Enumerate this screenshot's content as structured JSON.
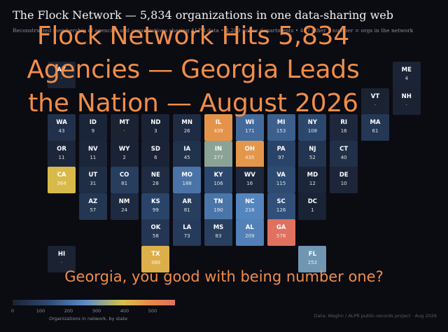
{
  "title": "The Flock Network — 5,834 organizations in one data-sharing web",
  "subtitle": "Reconstructed membership of agencies and organizations sharing ALPR data • 3,289 police departments • 407 other • number = orgs in the network",
  "overlay": {
    "headline_lines": [
      "Flock Network Hits 5,834",
      "Agencies — Georgia Leads",
      "the Nation — August 2026"
    ],
    "caption": "Georgia, you good with being number one?"
  },
  "legend": {
    "ticks": [
      "0",
      "100",
      "200",
      "300",
      "400",
      "500"
    ],
    "tick_values": [
      0,
      100,
      200,
      300,
      400,
      500
    ],
    "max": 580,
    "label": "Organizations in network, by state"
  },
  "credit": "Data: Waghn / ALPR public-records project · Aug 2026",
  "colors": {
    "empty": "#1b2232",
    "scale": [
      "#1a2234",
      "#2d4a72",
      "#5b8dc8",
      "#d6c24a",
      "#e8874a",
      "#e07060"
    ]
  },
  "chart_data": {
    "type": "heatmap",
    "description": "tile grid map",
    "legend_placement": "bottom-left",
    "states": [
      {
        "abbr": "AK",
        "value": null,
        "row": 1,
        "col": 1
      },
      {
        "abbr": "ME",
        "value": 4,
        "row": 1,
        "col": 12
      },
      {
        "abbr": "VT",
        "value": null,
        "row": 2,
        "col": 11
      },
      {
        "abbr": "NH",
        "value": null,
        "row": 2,
        "col": 12
      },
      {
        "abbr": "WA",
        "value": 43,
        "row": 3,
        "col": 1
      },
      {
        "abbr": "ID",
        "value": 9,
        "row": 3,
        "col": 2
      },
      {
        "abbr": "MT",
        "value": null,
        "row": 3,
        "col": 3
      },
      {
        "abbr": "ND",
        "value": 3,
        "row": 3,
        "col": 4
      },
      {
        "abbr": "MN",
        "value": 26,
        "row": 3,
        "col": 5
      },
      {
        "abbr": "IL",
        "value": 439,
        "row": 3,
        "col": 6
      },
      {
        "abbr": "WI",
        "value": 171,
        "row": 3,
        "col": 7
      },
      {
        "abbr": "MI",
        "value": 153,
        "row": 3,
        "col": 8
      },
      {
        "abbr": "NY",
        "value": 108,
        "row": 3,
        "col": 9
      },
      {
        "abbr": "RI",
        "value": 16,
        "row": 3,
        "col": 10
      },
      {
        "abbr": "MA",
        "value": 61,
        "row": 3,
        "col": 11
      },
      {
        "abbr": "OR",
        "value": 11,
        "row": 4,
        "col": 1
      },
      {
        "abbr": "NV",
        "value": 11,
        "row": 4,
        "col": 2
      },
      {
        "abbr": "WY",
        "value": 2,
        "row": 4,
        "col": 3
      },
      {
        "abbr": "SD",
        "value": 6,
        "row": 4,
        "col": 4
      },
      {
        "abbr": "IA",
        "value": 45,
        "row": 4,
        "col": 5
      },
      {
        "abbr": "IN",
        "value": 277,
        "row": 4,
        "col": 6
      },
      {
        "abbr": "OH",
        "value": 435,
        "row": 4,
        "col": 7
      },
      {
        "abbr": "PA",
        "value": 97,
        "row": 4,
        "col": 8
      },
      {
        "abbr": "NJ",
        "value": 52,
        "row": 4,
        "col": 9
      },
      {
        "abbr": "CT",
        "value": 40,
        "row": 4,
        "col": 10
      },
      {
        "abbr": "CA",
        "value": 364,
        "row": 5,
        "col": 1
      },
      {
        "abbr": "UT",
        "value": 31,
        "row": 5,
        "col": 2
      },
      {
        "abbr": "CO",
        "value": 81,
        "row": 5,
        "col": 3
      },
      {
        "abbr": "NE",
        "value": 28,
        "row": 5,
        "col": 4
      },
      {
        "abbr": "MO",
        "value": 188,
        "row": 5,
        "col": 5
      },
      {
        "abbr": "KY",
        "value": 106,
        "row": 5,
        "col": 6
      },
      {
        "abbr": "WV",
        "value": 16,
        "row": 5,
        "col": 7
      },
      {
        "abbr": "VA",
        "value": 115,
        "row": 5,
        "col": 8
      },
      {
        "abbr": "MD",
        "value": 12,
        "row": 5,
        "col": 9
      },
      {
        "abbr": "DE",
        "value": 10,
        "row": 5,
        "col": 10
      },
      {
        "abbr": "AZ",
        "value": 57,
        "row": 6,
        "col": 2
      },
      {
        "abbr": "NM",
        "value": 24,
        "row": 6,
        "col": 3
      },
      {
        "abbr": "KS",
        "value": 99,
        "row": 6,
        "col": 4
      },
      {
        "abbr": "AR",
        "value": 81,
        "row": 6,
        "col": 5
      },
      {
        "abbr": "TN",
        "value": 190,
        "row": 6,
        "col": 6
      },
      {
        "abbr": "NC",
        "value": 218,
        "row": 6,
        "col": 7
      },
      {
        "abbr": "SC",
        "value": 126,
        "row": 6,
        "col": 8
      },
      {
        "abbr": "DC",
        "value": 1,
        "row": 6,
        "col": 9
      },
      {
        "abbr": "OK",
        "value": 58,
        "row": 7,
        "col": 4
      },
      {
        "abbr": "LA",
        "value": 73,
        "row": 7,
        "col": 5
      },
      {
        "abbr": "MS",
        "value": 83,
        "row": 7,
        "col": 6
      },
      {
        "abbr": "AL",
        "value": 209,
        "row": 7,
        "col": 7
      },
      {
        "abbr": "GA",
        "value": 576,
        "row": 7,
        "col": 8
      },
      {
        "abbr": "HI",
        "value": null,
        "row": 8,
        "col": 1
      },
      {
        "abbr": "TX",
        "value": 386,
        "row": 8,
        "col": 4
      },
      {
        "abbr": "FL",
        "value": 252,
        "row": 8,
        "col": 9
      }
    ]
  }
}
